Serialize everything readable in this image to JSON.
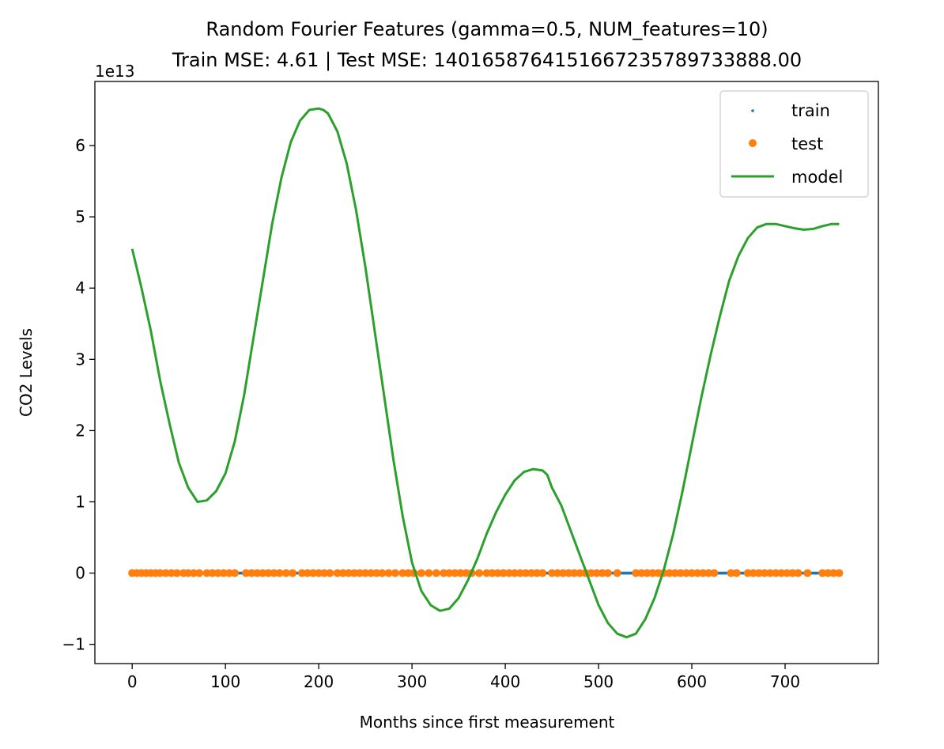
{
  "chart_data": {
    "type": "line",
    "title": "Random Fourier Features (gamma=0.5, NUM_features=10)",
    "subtitle": "Train MSE: 4.61 | Test MSE: 140165876415166723578973388​8.00",
    "xlabel": "Months since first measurement",
    "ylabel": "CO2 Levels",
    "y_offset_label": "1e13",
    "xlim": [
      -40,
      800
    ],
    "ylim": [
      -1.27,
      6.9
    ],
    "x_ticks": [
      0,
      100,
      200,
      300,
      400,
      500,
      600,
      700
    ],
    "x_tick_labels": [
      "0",
      "100",
      "200",
      "300",
      "400",
      "500",
      "600",
      "700"
    ],
    "y_ticks": [
      -1,
      0,
      1,
      2,
      3,
      4,
      5,
      6
    ],
    "y_tick_labels": [
      "−1",
      "0",
      "1",
      "2",
      "3",
      "4",
      "5",
      "6"
    ],
    "legend_position": "top-right",
    "series": [
      {
        "name": "train",
        "style": "dots",
        "color": "#1f77b4",
        "x_range": [
          0,
          758
        ],
        "y": 0
      },
      {
        "name": "test",
        "style": "markers",
        "color": "#ff7f0e",
        "x": [
          0,
          5,
          10,
          15,
          20,
          25,
          30,
          36,
          42,
          48,
          55,
          60,
          66,
          72,
          80,
          86,
          92,
          98,
          104,
          110,
          122,
          128,
          134,
          140,
          146,
          152,
          158,
          165,
          172,
          182,
          188,
          194,
          200,
          206,
          212,
          220,
          226,
          232,
          238,
          244,
          250,
          256,
          262,
          268,
          275,
          282,
          290,
          296,
          302,
          310,
          318,
          326,
          334,
          340,
          346,
          352,
          358,
          364,
          372,
          380,
          386,
          392,
          398,
          404,
          410,
          416,
          422,
          428,
          434,
          440,
          450,
          456,
          462,
          468,
          474,
          480,
          486,
          492,
          498,
          504,
          510,
          520,
          540,
          546,
          552,
          558,
          564,
          570,
          576,
          582,
          588,
          594,
          600,
          606,
          612,
          618,
          624,
          642,
          648,
          660,
          666,
          672,
          678,
          684,
          690,
          696,
          702,
          708,
          714,
          724,
          740,
          746,
          752,
          758
        ],
        "y": 0
      },
      {
        "name": "model",
        "style": "line",
        "color": "#2ca02c",
        "x": [
          0,
          10,
          20,
          30,
          40,
          50,
          60,
          70,
          80,
          90,
          100,
          110,
          120,
          130,
          140,
          150,
          160,
          170,
          180,
          190,
          200,
          205,
          210,
          220,
          230,
          240,
          250,
          260,
          270,
          280,
          290,
          300,
          310,
          320,
          330,
          340,
          350,
          360,
          370,
          380,
          390,
          400,
          410,
          420,
          430,
          440,
          445,
          450,
          460,
          470,
          480,
          490,
          500,
          510,
          520,
          530,
          540,
          550,
          560,
          570,
          580,
          590,
          600,
          610,
          620,
          630,
          640,
          650,
          660,
          670,
          680,
          690,
          700,
          710,
          720,
          730,
          740,
          750,
          758
        ],
        "y": [
          4.55,
          4.0,
          3.4,
          2.7,
          2.1,
          1.55,
          1.2,
          1.0,
          1.02,
          1.15,
          1.4,
          1.85,
          2.5,
          3.3,
          4.1,
          4.9,
          5.55,
          6.05,
          6.35,
          6.5,
          6.52,
          6.5,
          6.45,
          6.2,
          5.75,
          5.1,
          4.3,
          3.4,
          2.5,
          1.6,
          0.8,
          0.15,
          -0.25,
          -0.45,
          -0.53,
          -0.5,
          -0.35,
          -0.1,
          0.2,
          0.55,
          0.85,
          1.1,
          1.3,
          1.42,
          1.46,
          1.44,
          1.38,
          1.2,
          0.95,
          0.6,
          0.25,
          -0.1,
          -0.45,
          -0.7,
          -0.85,
          -0.9,
          -0.85,
          -0.65,
          -0.35,
          0.05,
          0.55,
          1.15,
          1.8,
          2.45,
          3.05,
          3.6,
          4.1,
          4.45,
          4.7,
          4.85,
          4.9,
          4.9,
          4.87,
          4.84,
          4.82,
          4.83,
          4.87,
          4.9,
          4.9
        ]
      }
    ]
  }
}
